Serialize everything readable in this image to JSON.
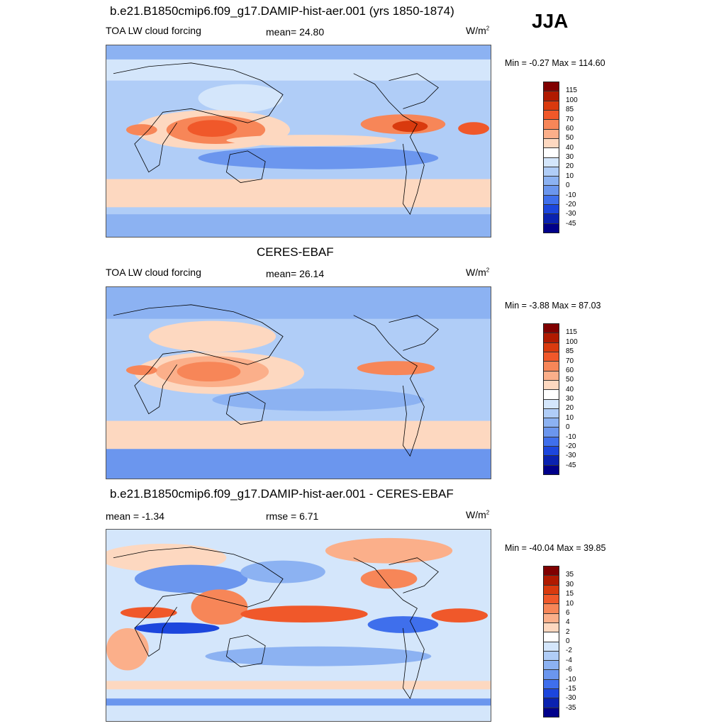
{
  "season": "JJA",
  "panels": [
    {
      "title": "b.e21.B1850cmip6.f09_g17.DAMIP-hist-aer.001 (yrs 1850-1874)",
      "left_label": "TOA LW cloud forcing",
      "mid_label": "mean=  24.80",
      "unit": "W/m",
      "unit_sup": "2",
      "minmax": "Min =  -0.27 Max = 114.60",
      "levels": [
        "115",
        "100",
        "85",
        "70",
        "60",
        "50",
        "40",
        "30",
        "20",
        "10",
        "0",
        "-10",
        "-20",
        "-30",
        "-45"
      ],
      "colors": [
        "#800000",
        "#b01a00",
        "#d93a0e",
        "#f0582a",
        "#f78658",
        "#fbaf8a",
        "#fdd8c0",
        "#ffffff",
        "#d4e6fb",
        "#b0cdf7",
        "#8cb2f2",
        "#6b96ee",
        "#3f6fec",
        "#1c46dd",
        "#0a22b0",
        "#00008a"
      ]
    },
    {
      "title": "CERES-EBAF",
      "left_label": "TOA LW cloud forcing",
      "mid_label": "mean=  26.14",
      "unit": "W/m",
      "unit_sup": "2",
      "minmax": "Min =  -3.88 Max =  87.03",
      "levels": [
        "115",
        "100",
        "85",
        "70",
        "60",
        "50",
        "40",
        "30",
        "20",
        "10",
        "0",
        "-10",
        "-20",
        "-30",
        "-45"
      ],
      "colors": [
        "#800000",
        "#b01a00",
        "#d93a0e",
        "#f0582a",
        "#f78658",
        "#fbaf8a",
        "#fdd8c0",
        "#ffffff",
        "#d4e6fb",
        "#b0cdf7",
        "#8cb2f2",
        "#6b96ee",
        "#3f6fec",
        "#1c46dd",
        "#0a22b0",
        "#00008a"
      ]
    },
    {
      "title": "b.e21.B1850cmip6.f09_g17.DAMIP-hist-aer.001 - CERES-EBAF",
      "left_label": "mean =  -1.34",
      "mid_label": "rmse =   6.71",
      "unit": "W/m",
      "unit_sup": "2",
      "minmax": "Min = -40.04 Max =  39.85",
      "levels": [
        "35",
        "30",
        "15",
        "10",
        "6",
        "4",
        "2",
        "0",
        "-2",
        "-4",
        "-6",
        "-10",
        "-15",
        "-30",
        "-35"
      ],
      "colors": [
        "#800000",
        "#b01a00",
        "#d93a0e",
        "#f0582a",
        "#f78658",
        "#fbaf8a",
        "#fdd8c0",
        "#ffffff",
        "#d4e6fb",
        "#b0cdf7",
        "#8cb2f2",
        "#6b96ee",
        "#3f6fec",
        "#1c46dd",
        "#0a22b0",
        "#00008a"
      ]
    }
  ]
}
